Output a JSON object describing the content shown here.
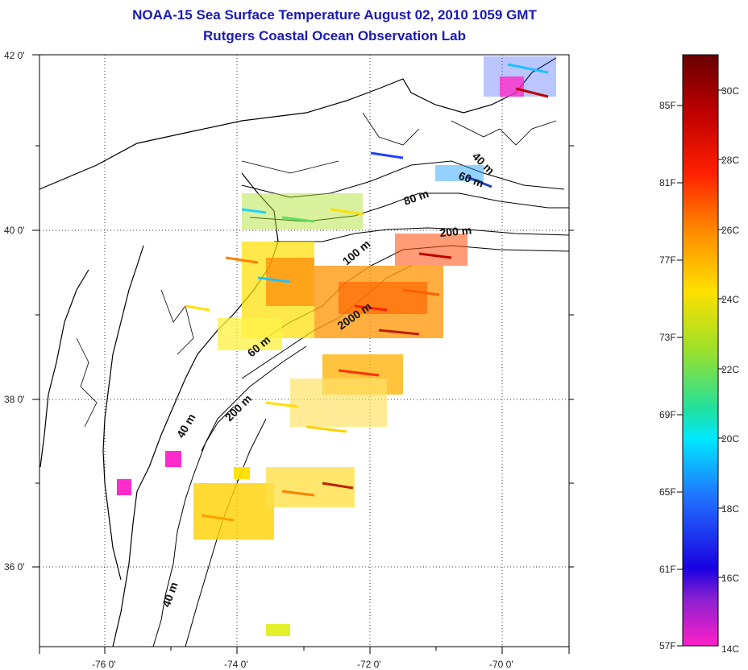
{
  "title": {
    "line1": "NOAA-15 Sea Surface Temperature August 02, 2010 1059 GMT",
    "line2": "Rutgers Coastal Ocean Observation Lab"
  },
  "map": {
    "lat_labels": [
      "42 0'",
      "40 0'",
      "38 0'",
      "36 0'"
    ],
    "lon_labels": [
      "-76 0'",
      "-74 0'",
      "-72 0'",
      "-70 0'"
    ],
    "isobath_labels": [
      "40 m",
      "60 m",
      "80 m",
      "200 m",
      "100 m",
      "2000 m",
      "60 m",
      "200 m",
      "40 m",
      "40 m"
    ]
  },
  "colorbar": {
    "f_labels": [
      "85F",
      "81F",
      "77F",
      "73F",
      "69F",
      "65F",
      "61F",
      "57F"
    ],
    "c_labels": [
      "30C",
      "28C",
      "26C",
      "24C",
      "22C",
      "20C",
      "18C",
      "16C",
      "14C"
    ],
    "colors": [
      "#7a0000",
      "#e00000",
      "#ff7a00",
      "#ffe600",
      "#7adf2a",
      "#00e8e0",
      "#1a50ff",
      "#1a10c8",
      "#8a1ad0",
      "#ff1ad0"
    ]
  }
}
